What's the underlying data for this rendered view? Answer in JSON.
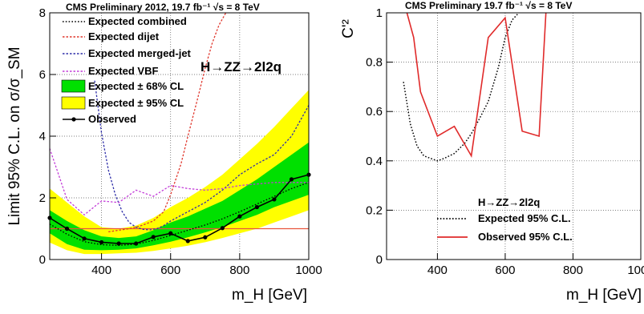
{
  "chart_data": [
    {
      "type": "line",
      "header": "CMS Preliminary 2012, 19.7 fb⁻¹ √s = 8 TeV",
      "annotation": "H→ZZ→2l2q",
      "xlabel": "m_H [GeV]",
      "ylabel": "Limit 95% C.L. on σ/σ_SM",
      "xlim": [
        250,
        1000
      ],
      "ylim": [
        0,
        8
      ],
      "xticks": [
        400,
        600,
        800,
        1000
      ],
      "yticks": [
        0,
        2,
        4,
        6,
        8
      ],
      "grid": true,
      "legend_position": "top-left",
      "reference_line": {
        "y": 1,
        "color": "#e8543c"
      },
      "bands": [
        {
          "name": "Expected ± 95% CL",
          "color": "#ffff00",
          "x": [
            250,
            300,
            350,
            400,
            450,
            500,
            550,
            600,
            650,
            700,
            750,
            800,
            850,
            900,
            950,
            1000
          ],
          "low": [
            0.55,
            0.3,
            0.18,
            0.18,
            0.2,
            0.22,
            0.28,
            0.36,
            0.45,
            0.56,
            0.7,
            0.85,
            1.0,
            1.2,
            1.4,
            1.6
          ],
          "high": [
            2.3,
            1.85,
            1.4,
            1.05,
            1.0,
            1.1,
            1.35,
            1.7,
            2.0,
            2.35,
            2.75,
            3.25,
            3.75,
            4.3,
            4.9,
            5.5
          ]
        },
        {
          "name": "Expected ± 68% CL",
          "color": "#00e000",
          "x": [
            250,
            300,
            350,
            400,
            450,
            500,
            550,
            600,
            650,
            700,
            750,
            800,
            850,
            900,
            950,
            1000
          ],
          "low": [
            0.85,
            0.5,
            0.32,
            0.3,
            0.32,
            0.36,
            0.46,
            0.58,
            0.72,
            0.88,
            1.05,
            1.25,
            1.45,
            1.7,
            1.9,
            2.1
          ],
          "high": [
            1.6,
            1.25,
            0.95,
            0.75,
            0.7,
            0.75,
            0.95,
            1.2,
            1.4,
            1.65,
            1.9,
            2.25,
            2.6,
            3.0,
            3.4,
            3.8
          ]
        }
      ],
      "series": [
        {
          "name": "Expected combined",
          "style": "dotted",
          "color": "#000000",
          "x": [
            250,
            300,
            350,
            400,
            450,
            500,
            550,
            600,
            650,
            700,
            750,
            800,
            850,
            900,
            950,
            1000
          ],
          "y": [
            1.15,
            0.82,
            0.58,
            0.48,
            0.46,
            0.5,
            0.62,
            0.78,
            0.95,
            1.12,
            1.32,
            1.55,
            1.8,
            2.05,
            2.3,
            2.5
          ]
        },
        {
          "name": "Expected dijet",
          "style": "dashed",
          "color": "#e0362c",
          "x": [
            420,
            450,
            480,
            500,
            520,
            550,
            580,
            600,
            630,
            650,
            680,
            700,
            720,
            740,
            760
          ],
          "y": [
            0.9,
            0.95,
            1.0,
            1.05,
            1.12,
            1.25,
            1.55,
            2.1,
            3.1,
            4.0,
            5.3,
            6.2,
            7.0,
            7.6,
            8.0
          ]
        },
        {
          "name": "Expected merged-jet",
          "style": "dashed",
          "color": "#2e2ea8",
          "x": [
            380,
            400,
            420,
            440,
            460,
            480,
            500,
            520,
            540,
            560,
            580,
            600,
            650,
            700,
            750,
            800,
            850,
            900,
            950,
            1000
          ],
          "y": [
            5.8,
            4.1,
            2.9,
            2.1,
            1.55,
            1.2,
            1.05,
            0.98,
            0.96,
            1.0,
            1.1,
            1.25,
            1.55,
            1.85,
            2.25,
            2.75,
            3.1,
            3.4,
            4.0,
            5.0
          ]
        },
        {
          "name": "Expected VBF",
          "style": "dashed",
          "color": "#c23cd8",
          "x": [
            250,
            300,
            350,
            400,
            450,
            500,
            550,
            600,
            650,
            700,
            750,
            800,
            850,
            900,
            950,
            1000
          ],
          "y": [
            3.6,
            1.95,
            1.45,
            1.9,
            1.85,
            2.25,
            2.05,
            2.4,
            2.3,
            2.25,
            2.3,
            2.4,
            2.45,
            2.5,
            2.5,
            2.5
          ]
        },
        {
          "name": "Observed",
          "style": "solid-markers",
          "color": "#000000",
          "x": [
            250,
            300,
            350,
            400,
            450,
            500,
            550,
            600,
            650,
            700,
            750,
            800,
            850,
            900,
            950,
            1000
          ],
          "y": [
            1.35,
            1.0,
            0.68,
            0.56,
            0.52,
            0.52,
            0.73,
            0.85,
            0.6,
            0.72,
            1.02,
            1.4,
            1.7,
            1.95,
            2.6,
            2.75
          ]
        }
      ]
    },
    {
      "type": "line",
      "header": "CMS Preliminary   19.7  fb⁻¹   √s = 8 TeV",
      "xlabel": "m_H [GeV]",
      "ylabel": "C'²",
      "xlim": [
        250,
        1000
      ],
      "ylim": [
        0,
        1
      ],
      "xticks": [
        400,
        600,
        800,
        1000
      ],
      "yticks": [
        0,
        0.2,
        0.4,
        0.6,
        0.8,
        1
      ],
      "grid": true,
      "legend_title": "H→ZZ→2l2q",
      "legend_position": "bottom-center",
      "series": [
        {
          "name": "Expected 95% C.L.",
          "style": "dotted",
          "color": "#000000",
          "x": [
            300,
            320,
            340,
            360,
            380,
            400,
            420,
            450,
            480,
            500,
            520,
            550,
            580,
            600,
            620,
            640
          ],
          "y": [
            0.72,
            0.55,
            0.46,
            0.42,
            0.41,
            0.4,
            0.41,
            0.43,
            0.47,
            0.51,
            0.56,
            0.64,
            0.78,
            0.9,
            0.97,
            1.0
          ]
        },
        {
          "name": "Observed 95% C.L.",
          "style": "solid",
          "color": "#e02a2a",
          "x": [
            310,
            330,
            350,
            400,
            450,
            500,
            550,
            600,
            650,
            700,
            720
          ],
          "y": [
            1.0,
            0.9,
            0.68,
            0.5,
            0.54,
            0.42,
            0.9,
            0.98,
            0.52,
            0.5,
            1.0
          ]
        }
      ]
    }
  ]
}
